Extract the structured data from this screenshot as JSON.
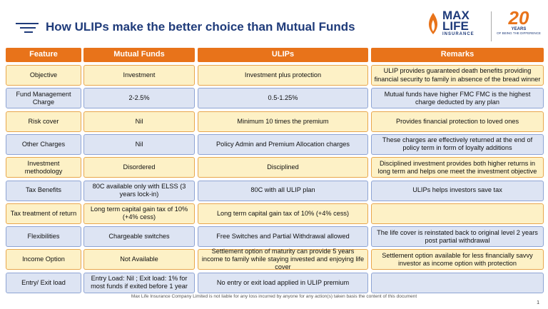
{
  "header": {
    "title": "How ULIPs make the better choice than Mutual Funds",
    "logo": {
      "line1": "MAX",
      "line2": "LIFE",
      "line3": "INSURANCE"
    },
    "badge": {
      "number": "20",
      "word": "YEARS",
      "tagline": "OF BEING THE DIFFERENCE"
    }
  },
  "table": {
    "columns": [
      "Feature",
      "Mutual Funds",
      "ULIPs",
      "Remarks"
    ],
    "rows": [
      [
        "Objective",
        "Investment",
        "Investment plus protection",
        "ULIP provides guaranteed death benefits providing financial security to family in absence of the bread winner"
      ],
      [
        "Fund Management Charge",
        "2-2.5%",
        "0.5-1.25%",
        "Mutual funds have higher FMC FMC is the highest charge deducted by any plan"
      ],
      [
        "Risk cover",
        "Nil",
        "Minimum 10 times the premium",
        "Provides financial protection to loved ones"
      ],
      [
        "Other Charges",
        "Nil",
        "Policy Admin and Premium Allocation charges",
        "These charges are effectively returned at the end of policy term in form of loyalty additions"
      ],
      [
        "Investment methodology",
        "Disordered",
        "Disciplined",
        "Disciplined investment provides both higher returns in long term and helps one meet the investment objective"
      ],
      [
        "Tax Benefits",
        "80C available only with ELSS (3 years lock-in)",
        "80C with all ULIP plan",
        "ULIPs helps investors save tax"
      ],
      [
        "Tax treatment of return",
        "Long term capital gain tax of 10% (+4% cess)",
        "Long term capital gain tax of 10% (+4% cess)",
        ""
      ],
      [
        "Flexibilities",
        "Chargeable switches",
        "Free Switches and Partial Withdrawal allowed",
        "The life cover is reinstated back to original level 2 years post partial withdrawal"
      ],
      [
        "Income Option",
        "Not Available",
        "Settlement option of maturity can provide 5 years income to family while staying invested and enjoying life cover",
        "Settlement option available for less financially savvy investor as income option with protection"
      ],
      [
        "Entry/ Exit load",
        "Entry Load: Nil ; Exit load: 1% for most funds if exited before 1 year",
        "No entry or exit load applied in ULIP premium",
        ""
      ]
    ]
  },
  "footer": {
    "disclaimer": "Max Life Insurance Company Limited is not liable for any loss incurred by anyone for any action(s) taken basis the content of this document",
    "page": "1"
  }
}
